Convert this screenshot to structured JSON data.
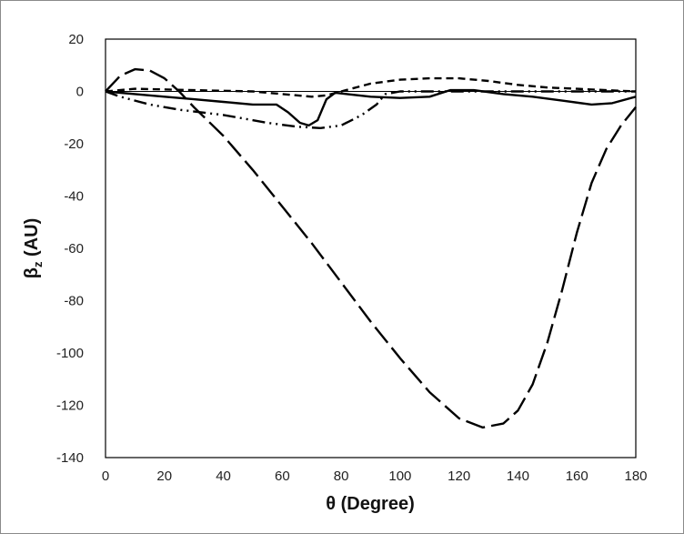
{
  "chart_data": {
    "type": "line",
    "xlabel": "θ (Degree)",
    "ylabel_main": "β",
    "ylabel_sub": "z",
    "ylabel_unit": " (AU)",
    "xlim": [
      0,
      180
    ],
    "ylim": [
      -140,
      20
    ],
    "x_ticks": [
      0,
      20,
      40,
      60,
      80,
      100,
      120,
      140,
      160,
      180
    ],
    "y_ticks": [
      20,
      0,
      -20,
      -40,
      -60,
      -80,
      -100,
      -120,
      -140
    ],
    "grid": false,
    "series": [
      {
        "style": "solid",
        "points": [
          [
            0,
            0
          ],
          [
            10,
            -1
          ],
          [
            20,
            -2
          ],
          [
            30,
            -3
          ],
          [
            40,
            -4
          ],
          [
            50,
            -5
          ],
          [
            58,
            -5
          ],
          [
            62,
            -8
          ],
          [
            66,
            -12
          ],
          [
            69,
            -13
          ],
          [
            72,
            -11
          ],
          [
            75,
            -3
          ],
          [
            78,
            -0.5
          ],
          [
            82,
            -1
          ],
          [
            90,
            -2
          ],
          [
            100,
            -2.5
          ],
          [
            110,
            -2
          ],
          [
            117,
            0.5
          ],
          [
            125,
            0.5
          ],
          [
            135,
            -1
          ],
          [
            145,
            -2
          ],
          [
            155,
            -3.5
          ],
          [
            165,
            -5
          ],
          [
            172,
            -4.5
          ],
          [
            180,
            -2
          ]
        ]
      },
      {
        "style": "dashed",
        "points": [
          [
            0,
            0
          ],
          [
            10,
            1
          ],
          [
            30,
            0.5
          ],
          [
            50,
            0
          ],
          [
            60,
            -1
          ],
          [
            70,
            -2
          ],
          [
            75,
            -1.5
          ],
          [
            80,
            0
          ],
          [
            90,
            3
          ],
          [
            100,
            4.5
          ],
          [
            110,
            5
          ],
          [
            120,
            5
          ],
          [
            130,
            4
          ],
          [
            140,
            2.5
          ],
          [
            150,
            1.5
          ],
          [
            160,
            1
          ],
          [
            170,
            0.5
          ],
          [
            180,
            0
          ]
        ]
      },
      {
        "style": "dash-dot-dot",
        "points": [
          [
            0,
            0
          ],
          [
            5,
            -2
          ],
          [
            15,
            -5
          ],
          [
            25,
            -7
          ],
          [
            40,
            -9
          ],
          [
            55,
            -12
          ],
          [
            65,
            -13.5
          ],
          [
            73,
            -14
          ],
          [
            80,
            -13
          ],
          [
            87,
            -9
          ],
          [
            92,
            -5
          ],
          [
            95,
            -1
          ],
          [
            100,
            0
          ],
          [
            110,
            0
          ],
          [
            120,
            0
          ],
          [
            130,
            0
          ],
          [
            150,
            0
          ],
          [
            180,
            0
          ]
        ]
      },
      {
        "style": "long-dash",
        "points": [
          [
            0,
            0
          ],
          [
            5,
            6
          ],
          [
            10,
            8.5
          ],
          [
            15,
            8
          ],
          [
            20,
            5
          ],
          [
            25,
            0
          ],
          [
            30,
            -6
          ],
          [
            40,
            -17
          ],
          [
            50,
            -30
          ],
          [
            60,
            -44
          ],
          [
            70,
            -58
          ],
          [
            80,
            -73
          ],
          [
            90,
            -88
          ],
          [
            100,
            -102
          ],
          [
            110,
            -115
          ],
          [
            120,
            -125
          ],
          [
            128,
            -128.5
          ],
          [
            135,
            -127
          ],
          [
            140,
            -122
          ],
          [
            145,
            -112
          ],
          [
            150,
            -96
          ],
          [
            155,
            -76
          ],
          [
            160,
            -54
          ],
          [
            165,
            -35
          ],
          [
            170,
            -22
          ],
          [
            175,
            -13
          ],
          [
            180,
            -6
          ]
        ]
      }
    ]
  }
}
